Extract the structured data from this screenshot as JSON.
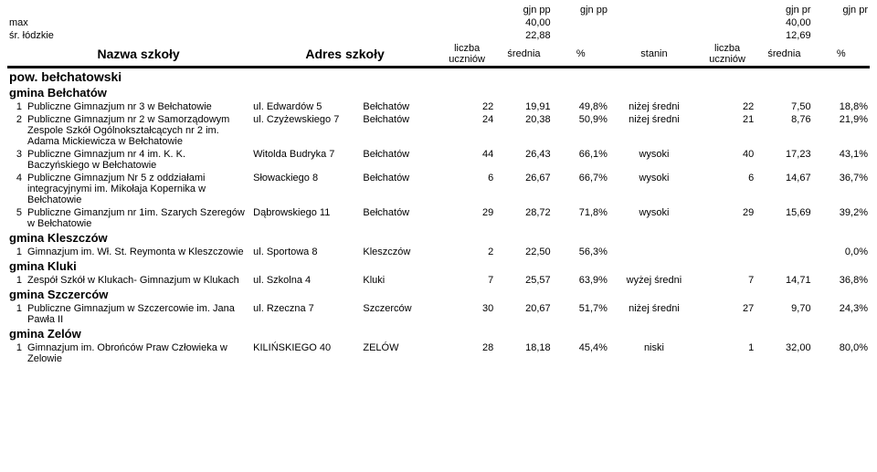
{
  "top": {
    "gjn_pp_a": "gjn pp",
    "gjn_pp_b": "gjn pp",
    "gjn_pr_a": "gjn pr",
    "gjn_pr_b": "gjn pr",
    "max_label": "max",
    "max_val_a": "40,00",
    "max_val_b": "40,00",
    "sr_label": "śr. łódzkie",
    "sr_val_a": "22,88",
    "sr_val_b": "12,69"
  },
  "head": {
    "name": "Nazwa szkoły",
    "addr": "Adres szkoły",
    "lu": "liczba uczniów",
    "avg": "średnia",
    "pct": "%",
    "stanin": "stanin"
  },
  "sections": {
    "s0": "pow. bełchatowski",
    "g0": "gmina Bełchatów",
    "g1": "gmina Kleszczów",
    "g2": "gmina Kluki",
    "g3": "gmina Szczerców",
    "g4": "gmina Zelów"
  },
  "rows": {
    "r0": {
      "idx": "1",
      "name": "Publiczne Gimnazjum nr 3 w Bełchatowie",
      "addr": "ul. Edwardów 5",
      "city": "Bełchatów",
      "lu1": "22",
      "avg1": "19,91",
      "pct1": "49,8%",
      "stan": "niżej średni",
      "lu2": "22",
      "avg2": "7,50",
      "pct2": "18,8%"
    },
    "r1": {
      "idx": "2",
      "name": "Publiczne Gimnazjum nr 2 w Samorządowym Zespole Szkół Ogólnokształcących nr 2 im. Adama Mickiewicza w Bełchatowie",
      "addr": "ul. Czyżewskiego 7",
      "city": "Bełchatów",
      "lu1": "24",
      "avg1": "20,38",
      "pct1": "50,9%",
      "stan": "niżej średni",
      "lu2": "21",
      "avg2": "8,76",
      "pct2": "21,9%"
    },
    "r2": {
      "idx": "3",
      "name": "Publiczne Gimnazjum nr 4 im. K. K. Baczyńskiego w Bełchatowie",
      "addr": "Witolda Budryka 7",
      "city": "Bełchatów",
      "lu1": "44",
      "avg1": "26,43",
      "pct1": "66,1%",
      "stan": "wysoki",
      "lu2": "40",
      "avg2": "17,23",
      "pct2": "43,1%"
    },
    "r3": {
      "idx": "4",
      "name": "Publiczne Gimnazjum Nr 5 z oddziałami integracyjnymi im. Mikołaja Kopernika w Bełchatowie",
      "addr": "Słowackiego 8",
      "city": "Bełchatów",
      "lu1": "6",
      "avg1": "26,67",
      "pct1": "66,7%",
      "stan": "wysoki",
      "lu2": "6",
      "avg2": "14,67",
      "pct2": "36,7%"
    },
    "r4": {
      "idx": "5",
      "name": "Publiczne Gimanzjum nr 1im. Szarych Szeregów w Bełchatowie",
      "addr": "Dąbrowskiego 11",
      "city": "Bełchatów",
      "lu1": "29",
      "avg1": "28,72",
      "pct1": "71,8%",
      "stan": "wysoki",
      "lu2": "29",
      "avg2": "15,69",
      "pct2": "39,2%"
    },
    "r5": {
      "idx": "1",
      "name": "Gimnazjum im. Wł. St. Reymonta w Kleszczowie",
      "addr": "ul. Sportowa 8",
      "city": "Kleszczów",
      "lu1": "2",
      "avg1": "22,50",
      "pct1": "56,3%",
      "stan": "",
      "lu2": "",
      "avg2": "",
      "pct2": "0,0%"
    },
    "r6": {
      "idx": "1",
      "name": "Zespół Szkół w Klukach- Gimnazjum w Klukach",
      "addr": "ul. Szkolna 4",
      "city": "Kluki",
      "lu1": "7",
      "avg1": "25,57",
      "pct1": "63,9%",
      "stan": "wyżej średni",
      "lu2": "7",
      "avg2": "14,71",
      "pct2": "36,8%"
    },
    "r7": {
      "idx": "1",
      "name": "Publiczne Gimnazjum w Szczercowie im. Jana Pawła II",
      "addr": "ul. Rzeczna 7",
      "city": "Szczerców",
      "lu1": "30",
      "avg1": "20,67",
      "pct1": "51,7%",
      "stan": "niżej średni",
      "lu2": "27",
      "avg2": "9,70",
      "pct2": "24,3%"
    },
    "r8": {
      "idx": "1",
      "name": "Gimnazjum im. Obrońców Praw Człowieka w Zelowie",
      "addr": "KILIŃSKIEGO 40",
      "city": "ZELÓW",
      "lu1": "28",
      "avg1": "18,18",
      "pct1": "45,4%",
      "stan": "niski",
      "lu2": "1",
      "avg2": "32,00",
      "pct2": "80,0%"
    }
  }
}
